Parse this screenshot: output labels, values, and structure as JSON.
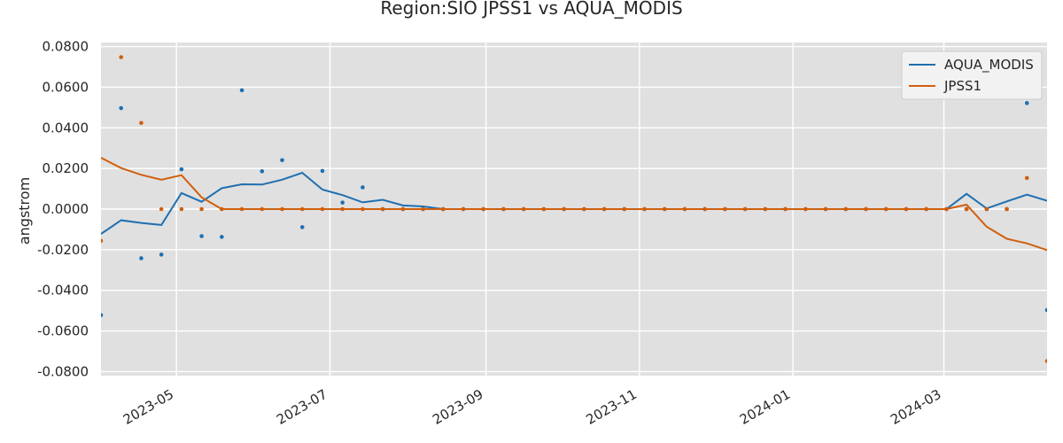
{
  "chart_data": {
    "type": "line",
    "title": "Region:SIO JPSS1 vs AQUA_MODIS",
    "xlabel": "",
    "ylabel": "angstrom",
    "ylim": [
      -0.082,
      0.082
    ],
    "xlim": [
      "2023-04-01",
      "2024-04-11"
    ],
    "grid": true,
    "legend_position": "top-right",
    "y_ticks": [
      -0.08,
      -0.06,
      -0.04,
      -0.02,
      0.0,
      0.02,
      0.04,
      0.06,
      0.08
    ],
    "y_tick_labels": [
      "-0.0800",
      "-0.0600",
      "-0.0400",
      "-0.0200",
      "0.0000",
      "0.0200",
      "0.0400",
      "0.0600",
      "0.0800"
    ],
    "x_ticks": [
      "2023-05-01",
      "2023-07-01",
      "2023-09-01",
      "2023-11-01",
      "2024-01-01",
      "2024-03-01"
    ],
    "x_tick_labels": [
      "2023-05",
      "2023-07",
      "2023-09",
      "2023-11",
      "2024-01",
      "2024-03"
    ],
    "dates": [
      "2023-04-01",
      "2023-04-09",
      "2023-04-17",
      "2023-04-25",
      "2023-05-03",
      "2023-05-11",
      "2023-05-19",
      "2023-05-27",
      "2023-06-04",
      "2023-06-12",
      "2023-06-20",
      "2023-06-28",
      "2023-07-06",
      "2023-07-14",
      "2023-07-22",
      "2023-07-30",
      "2023-08-07",
      "2023-08-15",
      "2023-08-23",
      "2023-08-31",
      "2023-09-08",
      "2023-09-16",
      "2023-09-24",
      "2023-10-02",
      "2023-10-10",
      "2023-10-18",
      "2023-10-26",
      "2023-11-03",
      "2023-11-11",
      "2023-11-19",
      "2023-11-27",
      "2023-12-05",
      "2023-12-13",
      "2023-12-21",
      "2023-12-29",
      "2024-01-06",
      "2024-01-14",
      "2024-01-22",
      "2024-01-30",
      "2024-02-07",
      "2024-02-15",
      "2024-02-23",
      "2024-03-02",
      "2024-03-10",
      "2024-03-18",
      "2024-03-26",
      "2024-04-03",
      "2024-04-11"
    ],
    "series": [
      {
        "name": "AQUA_MODIS",
        "color": "#1f6fb0",
        "line": [
          -0.0122,
          -0.0055,
          -0.0068,
          -0.0078,
          0.0079,
          0.0036,
          0.0103,
          0.0122,
          0.0121,
          0.0145,
          0.0179,
          0.0096,
          0.0069,
          0.0033,
          0.0046,
          0.0018,
          0.0013,
          0.0,
          0.0,
          0.0,
          0.0,
          0.0,
          0.0,
          0.0,
          0.0,
          0.0,
          0.0,
          0.0,
          0.0,
          0.0,
          0.0,
          0.0,
          0.0,
          0.0,
          0.0,
          0.0,
          0.0,
          0.0,
          0.0,
          0.0,
          0.0,
          0.0,
          0.0,
          0.0075,
          0.0003,
          0.0038,
          0.0071,
          0.0041
        ],
        "points": [
          -0.0522,
          0.0497,
          -0.0242,
          -0.0224,
          0.0196,
          -0.0133,
          -0.0137,
          0.0585,
          0.0186,
          0.0241,
          -0.0089,
          0.0188,
          0.0032,
          0.0107,
          0.0,
          0.0,
          0.0,
          0.0,
          0.0,
          0.0,
          0.0,
          0.0,
          0.0,
          0.0,
          0.0,
          0.0,
          0.0,
          0.0,
          0.0,
          0.0,
          0.0,
          0.0,
          0.0,
          0.0,
          0.0,
          0.0,
          0.0,
          0.0,
          0.0,
          0.0,
          0.0,
          0.0,
          0.0,
          0.0,
          0.0,
          0.0,
          0.0522,
          -0.0497
        ]
      },
      {
        "name": "JPSS1",
        "color": "#d15f0e",
        "line": [
          0.0253,
          0.0202,
          0.0169,
          0.0145,
          0.0167,
          0.0058,
          0.0,
          0.0,
          0.0,
          0.0,
          0.0,
          0.0,
          0.0,
          0.0,
          0.0,
          0.0,
          0.0,
          0.0,
          0.0,
          0.0,
          0.0,
          0.0,
          0.0,
          0.0,
          0.0,
          0.0,
          0.0,
          0.0,
          0.0,
          0.0,
          0.0,
          0.0,
          0.0,
          0.0,
          0.0,
          0.0,
          0.0,
          0.0,
          0.0,
          0.0,
          0.0,
          0.0,
          0.0,
          0.0022,
          -0.0087,
          -0.0146,
          -0.0169,
          -0.0202
        ],
        "points": [
          -0.0156,
          0.0748,
          0.0424,
          0.0,
          0.0,
          0.0,
          0.0,
          0.0,
          0.0,
          0.0,
          0.0,
          0.0,
          0.0,
          0.0,
          0.0,
          0.0,
          0.0,
          0.0,
          0.0,
          0.0,
          0.0,
          0.0,
          0.0,
          0.0,
          0.0,
          0.0,
          0.0,
          0.0,
          0.0,
          0.0,
          0.0,
          0.0,
          0.0,
          0.0,
          0.0,
          0.0,
          0.0,
          0.0,
          0.0,
          0.0,
          0.0,
          0.0,
          0.0,
          0.0,
          0.0,
          0.0,
          0.0153,
          -0.0748
        ]
      }
    ]
  }
}
